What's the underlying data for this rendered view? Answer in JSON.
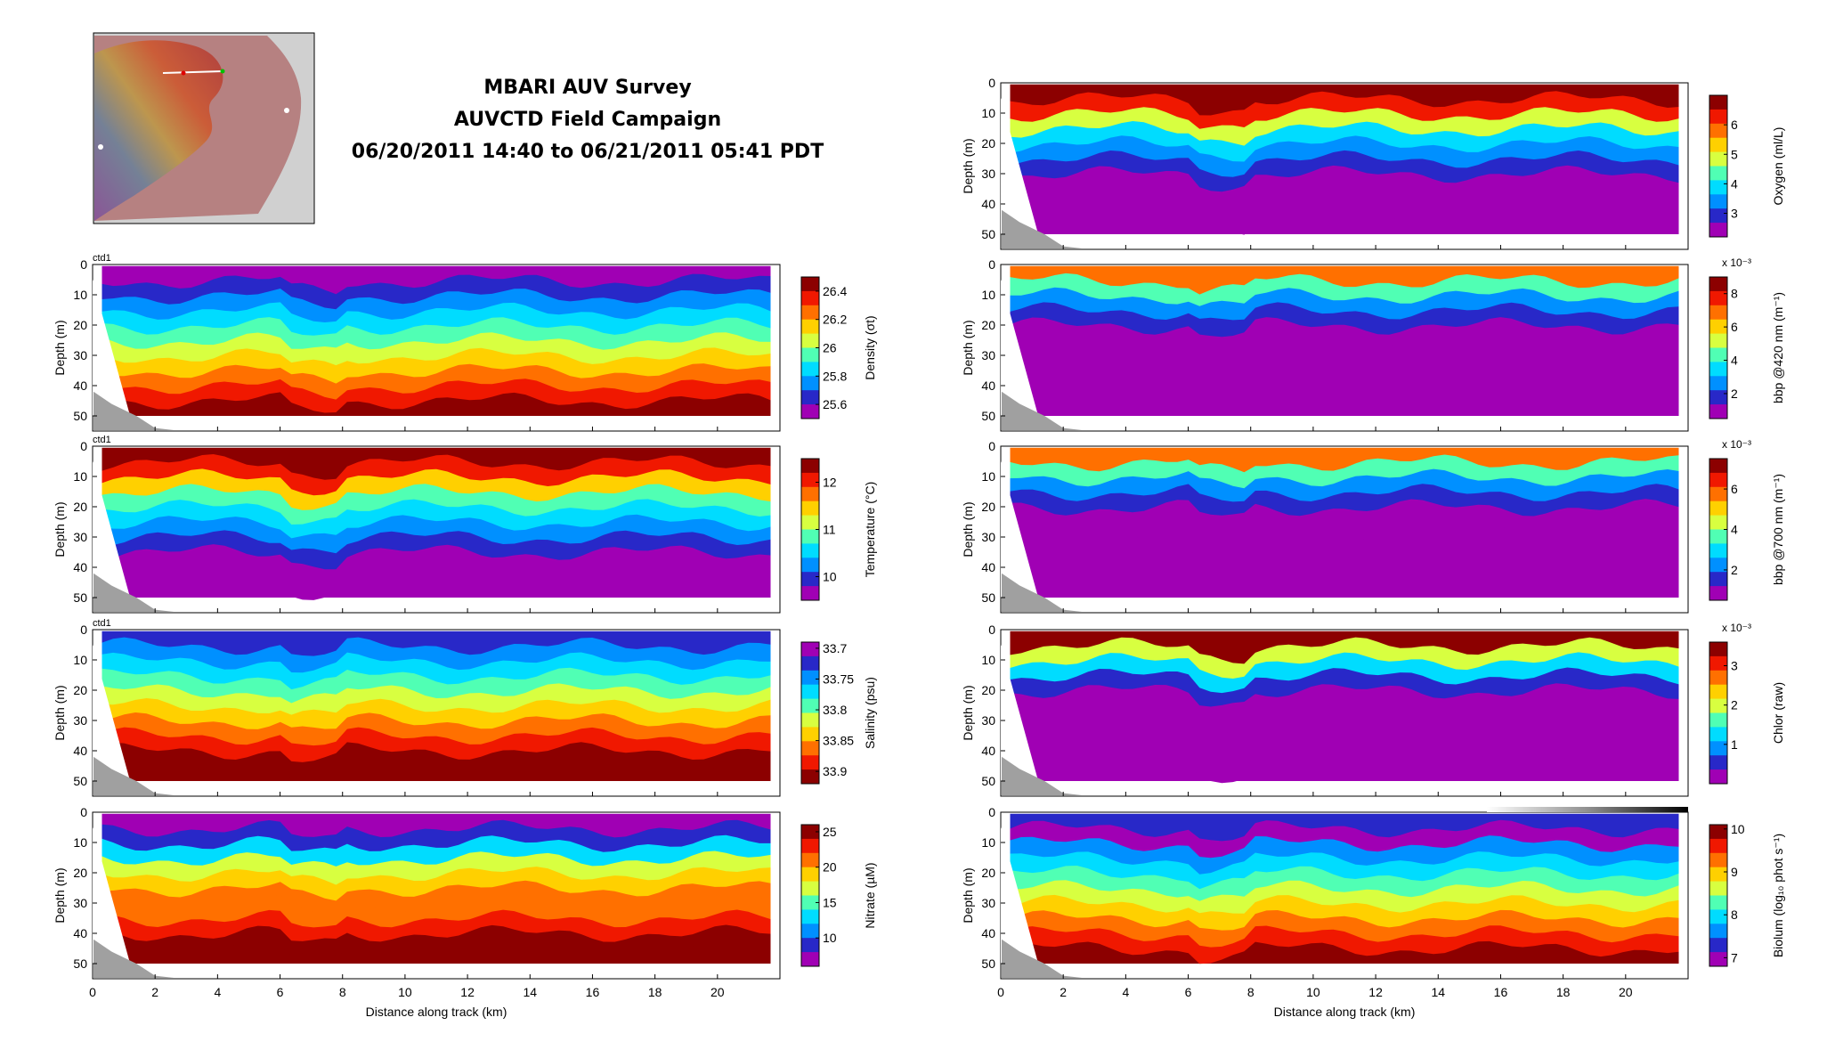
{
  "header": {
    "title": "MBARI AUV Survey",
    "subtitle": "AUVCTD Field Campaign",
    "date_range": "06/20/2011 14:40 to 06/21/2011 05:41 PDT"
  },
  "colormap": [
    "#a000b4",
    "#2828c8",
    "#0090ff",
    "#00dcff",
    "#50ffb4",
    "#d8ff40",
    "#ffd000",
    "#ff7000",
    "#f01800",
    "#8c0000"
  ],
  "chart_data": [
    {
      "type": "heatmap",
      "panel": "density",
      "tag": "ctd1",
      "ylabel": "Depth (m)",
      "colorbar_label": "Density (σt)",
      "ylim": [
        0,
        55
      ],
      "xlim": [
        0,
        22
      ],
      "clim": [
        25.5,
        26.5
      ],
      "colorbar_ticks": [
        {
          "label": "25.6",
          "value": 25.6
        },
        {
          "label": "25.8",
          "value": 25.8
        },
        {
          "label": "26",
          "value": 26.0
        },
        {
          "label": "26.2",
          "value": 26.2
        },
        {
          "label": "26.4",
          "value": 26.4
        }
      ],
      "colorbar_reversed": false,
      "y_ticks": [
        "0",
        "10",
        "20",
        "30",
        "40",
        "50"
      ]
    },
    {
      "type": "heatmap",
      "panel": "temperature",
      "tag": "ctd1",
      "ylabel": "Depth (m)",
      "colorbar_label": "Temperature (°C)",
      "ylim": [
        0,
        55
      ],
      "xlim": [
        0,
        22
      ],
      "clim": [
        9.5,
        12.5
      ],
      "colorbar_ticks": [
        {
          "label": "12",
          "value": 12
        },
        {
          "label": "11",
          "value": 11
        },
        {
          "label": "10",
          "value": 10
        }
      ],
      "colorbar_reversed": false,
      "y_ticks": [
        "0",
        "10",
        "20",
        "30",
        "40",
        "50"
      ]
    },
    {
      "type": "heatmap",
      "panel": "salinity",
      "tag": "ctd1",
      "ylabel": "Depth (m)",
      "colorbar_label": "Salinity (psu)",
      "ylim": [
        0,
        55
      ],
      "xlim": [
        0,
        22
      ],
      "clim": [
        33.69,
        33.92
      ],
      "colorbar_ticks": [
        {
          "label": "33.7",
          "value": 33.7
        },
        {
          "label": "33.75",
          "value": 33.75
        },
        {
          "label": "33.8",
          "value": 33.8
        },
        {
          "label": "33.85",
          "value": 33.85
        },
        {
          "label": "33.9",
          "value": 33.9
        }
      ],
      "colorbar_reversed": true,
      "y_ticks": [
        "0",
        "10",
        "20",
        "30",
        "40",
        "50"
      ]
    },
    {
      "type": "heatmap",
      "panel": "nitrate",
      "tag": "",
      "ylabel": "Depth (m)",
      "colorbar_label": "Nitrate (µM)",
      "xlabel": "Distance along track (km)",
      "ylim": [
        0,
        55
      ],
      "xlim": [
        0,
        22
      ],
      "clim": [
        6,
        26
      ],
      "colorbar_ticks": [
        {
          "label": "10",
          "value": 10
        },
        {
          "label": "15",
          "value": 15
        },
        {
          "label": "20",
          "value": 20
        },
        {
          "label": "25",
          "value": 25
        }
      ],
      "colorbar_reversed": false,
      "y_ticks": [
        "0",
        "10",
        "20",
        "30",
        "40",
        "50"
      ],
      "x_ticks": [
        "0",
        "2",
        "4",
        "6",
        "8",
        "10",
        "12",
        "14",
        "16",
        "18",
        "20"
      ]
    },
    {
      "type": "heatmap",
      "panel": "oxygen",
      "tag": "",
      "ylabel": "Depth (m)",
      "colorbar_label": "Oxygen (ml/L)",
      "ylim": [
        0,
        55
      ],
      "xlim": [
        0,
        22
      ],
      "clim": [
        2.2,
        7.0
      ],
      "colorbar_ticks": [
        {
          "label": "6",
          "value": 6
        },
        {
          "label": "5",
          "value": 5
        },
        {
          "label": "4",
          "value": 4
        },
        {
          "label": "3",
          "value": 3
        }
      ],
      "colorbar_reversed": false,
      "y_ticks": [
        "0",
        "10",
        "20",
        "30",
        "40",
        "50"
      ]
    },
    {
      "type": "heatmap",
      "panel": "bbp420",
      "tag": "",
      "ylabel": "Depth (m)",
      "colorbar_label": "bbp @420 nm (m⁻¹)",
      "colorbar_multiplier": "x 10⁻³",
      "ylim": [
        0,
        55
      ],
      "xlim": [
        0,
        22
      ],
      "clim": [
        0.5,
        9.0
      ],
      "colorbar_ticks": [
        {
          "label": "8",
          "value": 8
        },
        {
          "label": "6",
          "value": 6
        },
        {
          "label": "4",
          "value": 4
        },
        {
          "label": "2",
          "value": 2
        }
      ],
      "colorbar_reversed": false,
      "y_ticks": [
        "0",
        "10",
        "20",
        "30",
        "40",
        "50"
      ]
    },
    {
      "type": "heatmap",
      "panel": "bbp700",
      "tag": "",
      "ylabel": "Depth (m)",
      "colorbar_label": "bbp @700 nm (m⁻¹)",
      "colorbar_multiplier": "x 10⁻³",
      "ylim": [
        0,
        55
      ],
      "xlim": [
        0,
        22
      ],
      "clim": [
        0.5,
        7.5
      ],
      "colorbar_ticks": [
        {
          "label": "6",
          "value": 6
        },
        {
          "label": "4",
          "value": 4
        },
        {
          "label": "2",
          "value": 2
        }
      ],
      "colorbar_reversed": false,
      "y_ticks": [
        "0",
        "10",
        "20",
        "30",
        "40",
        "50"
      ]
    },
    {
      "type": "heatmap",
      "panel": "chlor",
      "tag": "",
      "ylabel": "Depth (m)",
      "colorbar_label": "Chlor (raw)",
      "colorbar_multiplier": "x 10⁻³",
      "ylim": [
        0,
        55
      ],
      "xlim": [
        0,
        22
      ],
      "clim": [
        0.0,
        3.6
      ],
      "colorbar_ticks": [
        {
          "label": "3",
          "value": 3
        },
        {
          "label": "2",
          "value": 2
        },
        {
          "label": "1",
          "value": 1
        }
      ],
      "colorbar_reversed": false,
      "y_ticks": [
        "0",
        "10",
        "20",
        "30",
        "40",
        "50"
      ]
    },
    {
      "type": "heatmap",
      "panel": "biolum",
      "tag": "",
      "ylabel": "Depth (m)",
      "colorbar_label": "Biolum (log₁₀ phot s⁻¹)",
      "xlabel": "Distance along track (km)",
      "ylim": [
        0,
        55
      ],
      "xlim": [
        0,
        22
      ],
      "clim": [
        6.8,
        10.1
      ],
      "colorbar_ticks": [
        {
          "label": "10",
          "value": 10
        },
        {
          "label": "9",
          "value": 9
        },
        {
          "label": "8",
          "value": 8
        },
        {
          "label": "7",
          "value": 7
        }
      ],
      "colorbar_reversed": false,
      "y_ticks": [
        "0",
        "10",
        "20",
        "30",
        "40",
        "50"
      ],
      "x_ticks": [
        "0",
        "2",
        "4",
        "6",
        "8",
        "10",
        "12",
        "14",
        "16",
        "18",
        "20"
      ]
    }
  ]
}
